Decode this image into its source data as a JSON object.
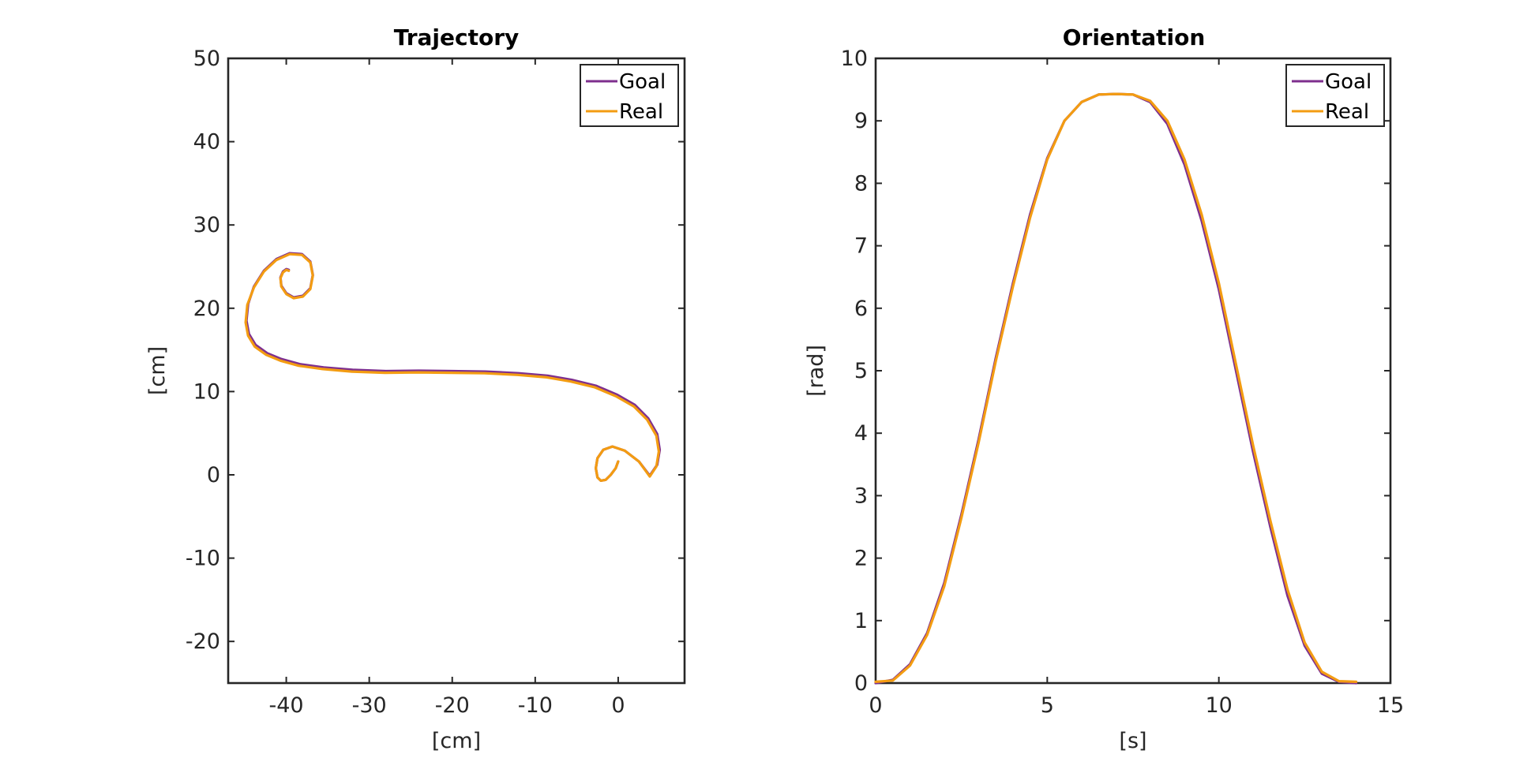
{
  "chart_data": [
    {
      "type": "line",
      "title": "Trajectory",
      "xlabel": "[cm]",
      "ylabel": "[cm]",
      "xlim": [
        -47,
        8
      ],
      "ylim": [
        -25,
        50
      ],
      "xticks": [
        -40,
        -30,
        -20,
        -10,
        0
      ],
      "xtick_labels": [
        "-40",
        "-30",
        "-20",
        "-10",
        "0"
      ],
      "yticks": [
        -20,
        -10,
        0,
        10,
        20,
        30,
        40,
        50
      ],
      "ytick_labels": [
        "-20",
        "-10",
        "0",
        "10",
        "20",
        "30",
        "40",
        "50"
      ],
      "grid": false,
      "legend_position": "top-right",
      "series": [
        {
          "name": "Goal",
          "color": "#7e2f8e",
          "x": [
            0.0,
            -0.3,
            -0.9,
            -1.5,
            -2.1,
            -2.5,
            -2.7,
            -2.5,
            -1.8,
            -0.7,
            0.8,
            2.5,
            3.8,
            4.7,
            5.0,
            4.7,
            3.6,
            2.0,
            -0.1,
            -2.7,
            -5.6,
            -8.5,
            -12.0,
            -16.0,
            -20.0,
            -24.0,
            -28.0,
            -32.0,
            -35.5,
            -38.4,
            -40.6,
            -42.3,
            -43.7,
            -44.5,
            -44.8,
            -44.6,
            -43.9,
            -42.7,
            -41.2,
            -39.6,
            -38.1,
            -37.1,
            -36.8,
            -37.1,
            -38.0,
            -39.1,
            -40.0,
            -40.6,
            -40.7,
            -40.4,
            -40.0,
            -39.7
          ],
          "y": [
            1.6,
            0.8,
            0.0,
            -0.6,
            -0.7,
            -0.3,
            0.8,
            2.0,
            3.0,
            3.4,
            2.9,
            1.6,
            -0.1,
            1.2,
            3.0,
            4.9,
            6.8,
            8.4,
            9.6,
            10.7,
            11.4,
            11.9,
            12.2,
            12.4,
            12.45,
            12.5,
            12.45,
            12.6,
            12.9,
            13.3,
            13.9,
            14.6,
            15.6,
            16.9,
            18.5,
            20.5,
            22.6,
            24.5,
            25.9,
            26.6,
            26.5,
            25.6,
            24.0,
            22.4,
            21.5,
            21.3,
            21.8,
            22.7,
            23.7,
            24.4,
            24.7,
            24.6
          ]
        },
        {
          "name": "Real",
          "color": "#f39c12",
          "x": [
            0.0,
            -0.3,
            -0.9,
            -1.5,
            -2.1,
            -2.5,
            -2.7,
            -2.5,
            -1.8,
            -0.7,
            0.8,
            2.5,
            3.8,
            4.6,
            4.9,
            4.6,
            3.5,
            1.9,
            -0.2,
            -2.8,
            -5.7,
            -8.6,
            -12.1,
            -16.1,
            -20.1,
            -24.1,
            -28.1,
            -32.1,
            -35.6,
            -38.5,
            -40.7,
            -42.4,
            -43.8,
            -44.6,
            -44.9,
            -44.7,
            -43.9,
            -42.7,
            -41.2,
            -39.6,
            -38.1,
            -37.1,
            -36.8,
            -37.1,
            -38.0,
            -39.1,
            -40.0,
            -40.6,
            -40.7,
            -40.4,
            -40.0,
            -39.7
          ],
          "y": [
            1.6,
            0.8,
            0.0,
            -0.6,
            -0.7,
            -0.3,
            0.8,
            2.0,
            3.0,
            3.4,
            2.9,
            1.6,
            -0.2,
            1.0,
            2.8,
            4.7,
            6.6,
            8.2,
            9.4,
            10.5,
            11.2,
            11.7,
            12.0,
            12.2,
            12.25,
            12.3,
            12.25,
            12.4,
            12.7,
            13.1,
            13.7,
            14.4,
            15.4,
            16.7,
            18.3,
            20.4,
            22.5,
            24.4,
            25.8,
            26.5,
            26.4,
            25.5,
            23.9,
            22.3,
            21.4,
            21.2,
            21.7,
            22.6,
            23.6,
            24.3,
            24.6,
            24.5
          ]
        }
      ]
    },
    {
      "type": "line",
      "title": "Orientation",
      "xlabel": "[s]",
      "ylabel": "[rad]",
      "xlim": [
        0,
        15
      ],
      "ylim": [
        0,
        10
      ],
      "xticks": [
        0,
        5,
        10,
        15
      ],
      "xtick_labels": [
        "0",
        "5",
        "10",
        "15"
      ],
      "yticks": [
        0,
        1,
        2,
        3,
        4,
        5,
        6,
        7,
        8,
        9,
        10
      ],
      "ytick_labels": [
        "0",
        "1",
        "2",
        "3",
        "4",
        "5",
        "6",
        "7",
        "8",
        "9",
        "10"
      ],
      "grid": false,
      "legend_position": "top-right",
      "series": [
        {
          "name": "Goal",
          "color": "#7e2f8e",
          "x": [
            0,
            0.5,
            1.0,
            1.5,
            2.0,
            2.5,
            3.0,
            3.5,
            4.0,
            4.5,
            5.0,
            5.5,
            6.0,
            6.5,
            7.0,
            7.5,
            8.0,
            8.5,
            9.0,
            9.5,
            10.0,
            10.5,
            11.0,
            11.5,
            12.0,
            12.5,
            13.0,
            13.5,
            14.0
          ],
          "y": [
            0.0,
            0.05,
            0.3,
            0.8,
            1.6,
            2.7,
            3.9,
            5.2,
            6.4,
            7.5,
            8.4,
            9.0,
            9.3,
            9.42,
            9.43,
            9.42,
            9.3,
            8.95,
            8.3,
            7.4,
            6.3,
            5.0,
            3.7,
            2.5,
            1.4,
            0.6,
            0.15,
            0.02,
            0.0
          ]
        },
        {
          "name": "Real",
          "color": "#f39c12",
          "x": [
            0,
            0.5,
            1.0,
            1.5,
            2.0,
            2.5,
            3.0,
            3.5,
            4.0,
            4.5,
            5.0,
            5.5,
            6.0,
            6.5,
            7.0,
            7.5,
            8.0,
            8.5,
            9.0,
            9.5,
            10.0,
            10.5,
            11.0,
            11.5,
            12.0,
            12.5,
            13.0,
            13.5,
            14.0
          ],
          "y": [
            0.02,
            0.04,
            0.28,
            0.77,
            1.55,
            2.65,
            3.85,
            5.15,
            6.35,
            7.45,
            8.38,
            9.0,
            9.3,
            9.42,
            9.43,
            9.42,
            9.32,
            9.0,
            8.38,
            7.5,
            6.4,
            5.1,
            3.8,
            2.6,
            1.5,
            0.65,
            0.18,
            0.03,
            0.02
          ]
        }
      ]
    }
  ]
}
